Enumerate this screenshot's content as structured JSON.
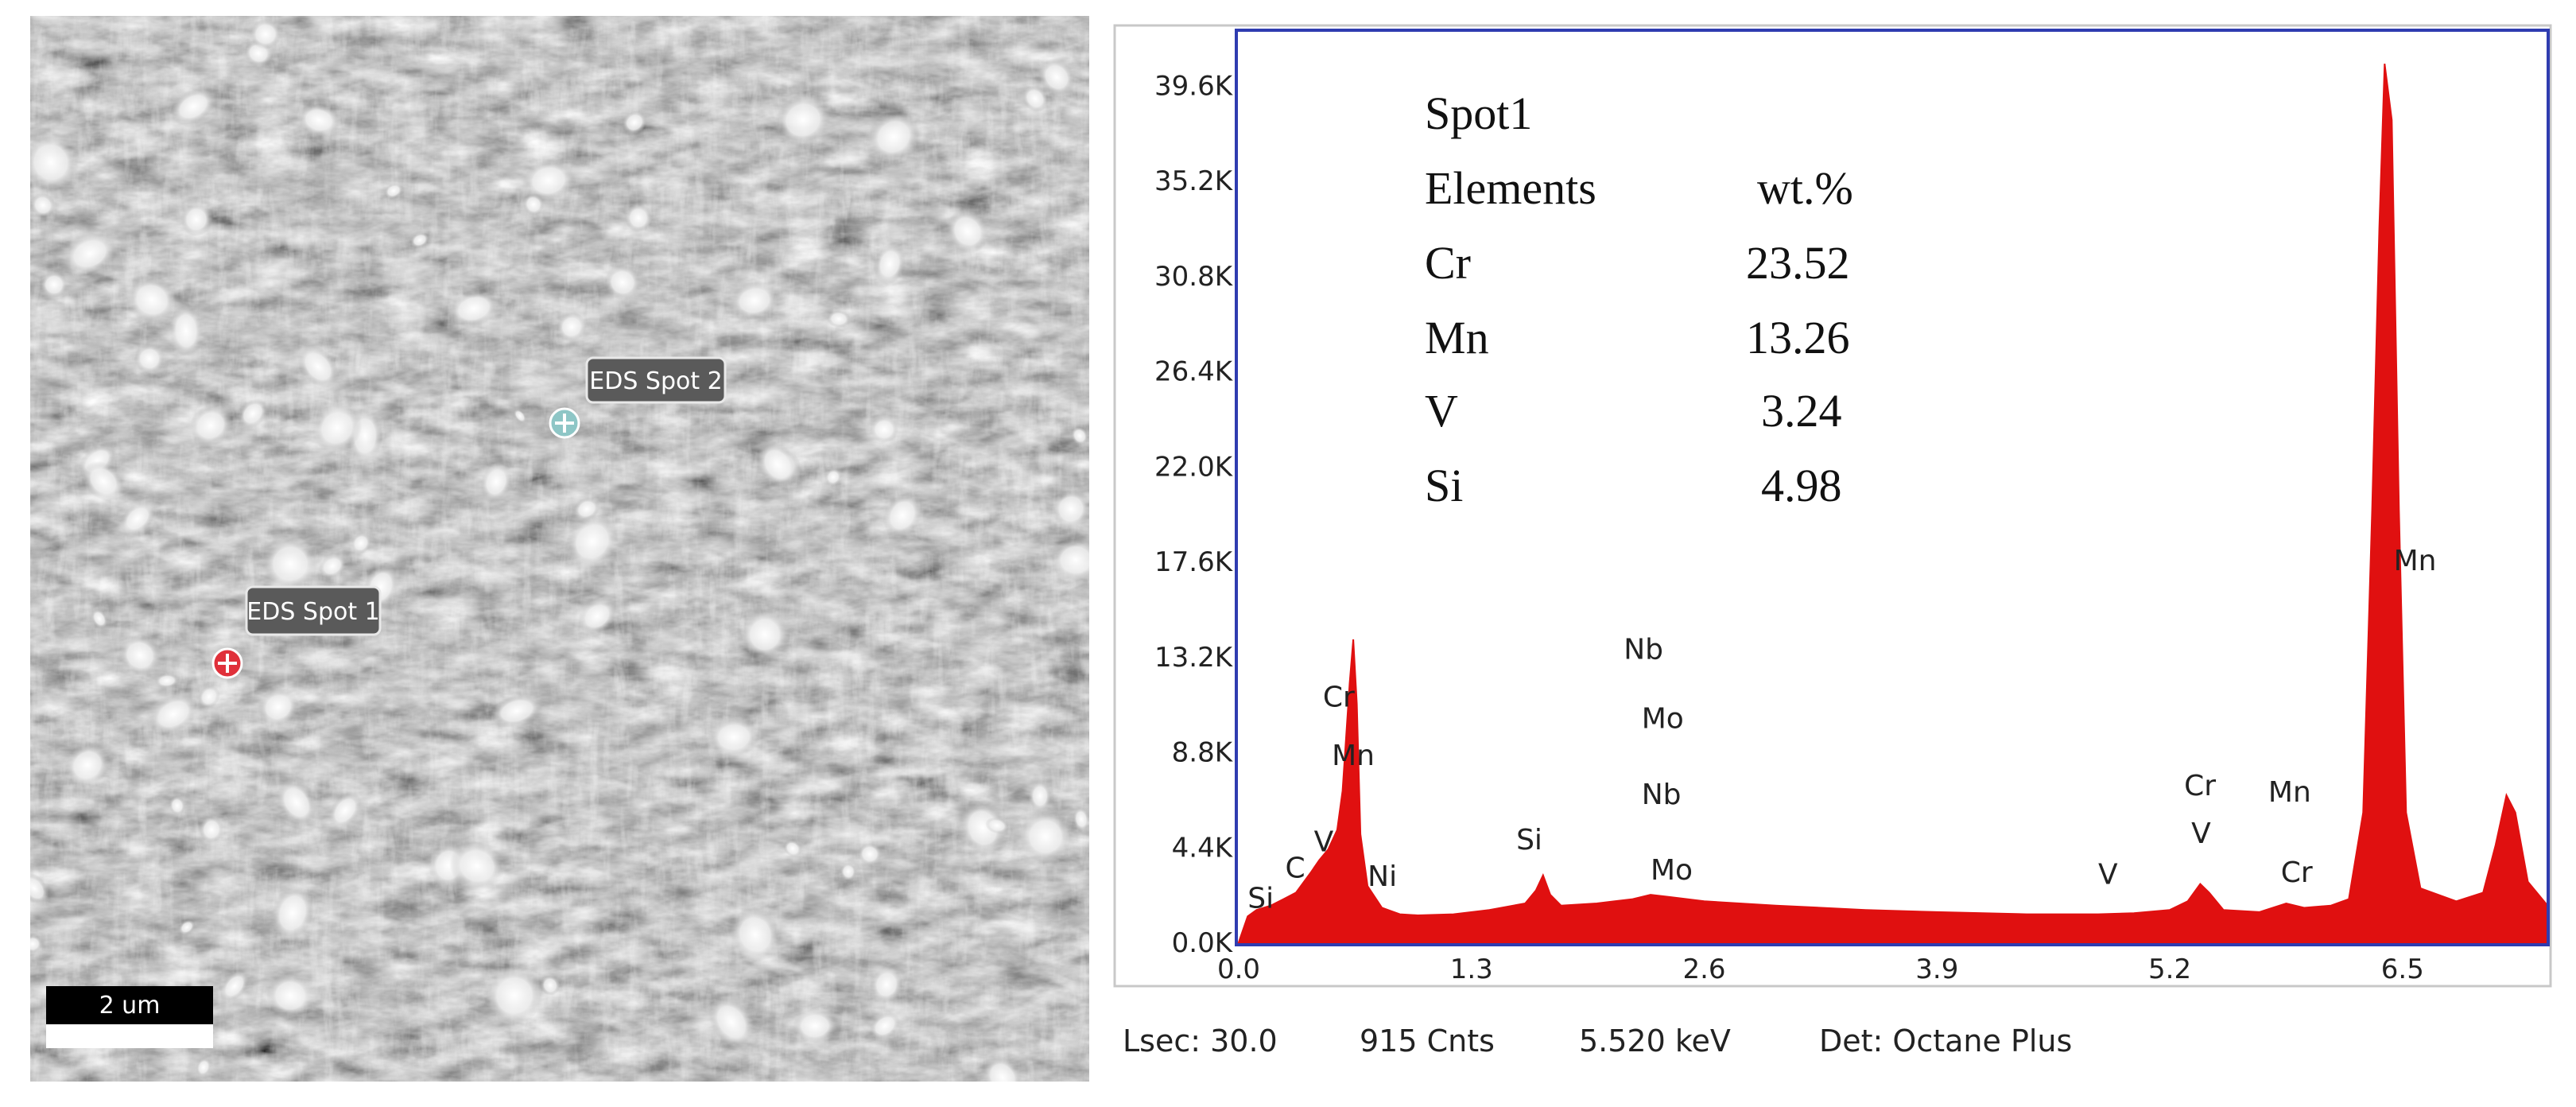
{
  "sem": {
    "spots": [
      {
        "label": "EDS Spot 1",
        "marker_color": "#e0303a"
      },
      {
        "label": "EDS Spot 2",
        "marker_color": "#8ec6c6"
      }
    ],
    "scale_bar_label": "2 um"
  },
  "chart_data": {
    "type": "area",
    "x_ticks": [
      "0.0",
      "1.3",
      "2.6",
      "3.9",
      "5.2",
      "6.5"
    ],
    "y_ticks": [
      "0.0K",
      "4.4K",
      "8.8K",
      "13.2K",
      "17.6K",
      "22.0K",
      "26.4K",
      "30.8K",
      "35.2K",
      "39.6K"
    ],
    "xlim": [
      0,
      7.3
    ],
    "ylim": [
      0,
      42000
    ],
    "series_color": "#e01010",
    "frame_color": "#2f3cb0",
    "spectrum": [
      [
        0.0,
        0
      ],
      [
        0.05,
        1200
      ],
      [
        0.1,
        1500
      ],
      [
        0.18,
        1700
      ],
      [
        0.25,
        2000
      ],
      [
        0.32,
        2300
      ],
      [
        0.4,
        3200
      ],
      [
        0.45,
        3800
      ],
      [
        0.5,
        4300
      ],
      [
        0.55,
        5200
      ],
      [
        0.58,
        7000
      ],
      [
        0.6,
        9500
      ],
      [
        0.62,
        12000
      ],
      [
        0.64,
        14000
      ],
      [
        0.66,
        11000
      ],
      [
        0.68,
        5000
      ],
      [
        0.72,
        2600
      ],
      [
        0.8,
        1600
      ],
      [
        0.9,
        1300
      ],
      [
        1.0,
        1250
      ],
      [
        1.2,
        1300
      ],
      [
        1.4,
        1500
      ],
      [
        1.6,
        1800
      ],
      [
        1.66,
        2400
      ],
      [
        1.7,
        3100
      ],
      [
        1.74,
        2200
      ],
      [
        1.8,
        1700
      ],
      [
        2.0,
        1800
      ],
      [
        2.2,
        2000
      ],
      [
        2.3,
        2200
      ],
      [
        2.4,
        2100
      ],
      [
        2.6,
        1900
      ],
      [
        3.0,
        1700
      ],
      [
        3.5,
        1500
      ],
      [
        3.9,
        1400
      ],
      [
        4.4,
        1300
      ],
      [
        4.8,
        1300
      ],
      [
        5.0,
        1350
      ],
      [
        5.2,
        1500
      ],
      [
        5.3,
        1900
      ],
      [
        5.37,
        2700
      ],
      [
        5.42,
        2300
      ],
      [
        5.5,
        1500
      ],
      [
        5.7,
        1400
      ],
      [
        5.85,
        1800
      ],
      [
        5.95,
        1600
      ],
      [
        6.1,
        1700
      ],
      [
        6.2,
        2000
      ],
      [
        6.28,
        6000
      ],
      [
        6.33,
        20000
      ],
      [
        6.37,
        33000
      ],
      [
        6.4,
        40600
      ],
      [
        6.44,
        38000
      ],
      [
        6.48,
        20000
      ],
      [
        6.52,
        6000
      ],
      [
        6.6,
        2500
      ],
      [
        6.8,
        1900
      ],
      [
        6.95,
        2300
      ],
      [
        7.02,
        4500
      ],
      [
        7.08,
        6800
      ],
      [
        7.13,
        6000
      ],
      [
        7.2,
        2800
      ],
      [
        7.3,
        1800
      ]
    ],
    "peak_labels": [
      {
        "text": "Si",
        "x": 0.05,
        "y": 1600
      },
      {
        "text": "C",
        "x": 0.26,
        "y": 3000
      },
      {
        "text": "V",
        "x": 0.42,
        "y": 4200
      },
      {
        "text": "Ni",
        "x": 0.72,
        "y": 2600
      },
      {
        "text": "Mn",
        "x": 0.52,
        "y": 8200
      },
      {
        "text": "Cr",
        "x": 0.47,
        "y": 10900
      },
      {
        "text": "Si",
        "x": 1.55,
        "y": 4300
      },
      {
        "text": "Mo",
        "x": 2.3,
        "y": 2900
      },
      {
        "text": "Nb",
        "x": 2.25,
        "y": 6400
      },
      {
        "text": "Mo",
        "x": 2.25,
        "y": 9900
      },
      {
        "text": "Nb",
        "x": 2.15,
        "y": 13100
      },
      {
        "text": "V",
        "x": 4.8,
        "y": 2700
      },
      {
        "text": "V",
        "x": 5.32,
        "y": 4600
      },
      {
        "text": "Cr",
        "x": 5.28,
        "y": 6800
      },
      {
        "text": "Cr",
        "x": 5.82,
        "y": 2800
      },
      {
        "text": "Mn",
        "x": 5.75,
        "y": 6500
      },
      {
        "text": "Mn",
        "x": 6.45,
        "y": 17200
      }
    ],
    "table": {
      "title": "Spot1",
      "header_element": "Elements",
      "header_value": "wt.%",
      "rows": [
        {
          "element": "Cr",
          "value": "23.52"
        },
        {
          "element": "Mn",
          "value": "13.26"
        },
        {
          "element": "V",
          "value": "3.24"
        },
        {
          "element": "Si",
          "value": "4.98"
        }
      ]
    },
    "footer": {
      "lsec": "Lsec: 30.0",
      "cnts": "915 Cnts",
      "kev": "5.520 keV",
      "det": "Det: Octane Plus"
    }
  }
}
